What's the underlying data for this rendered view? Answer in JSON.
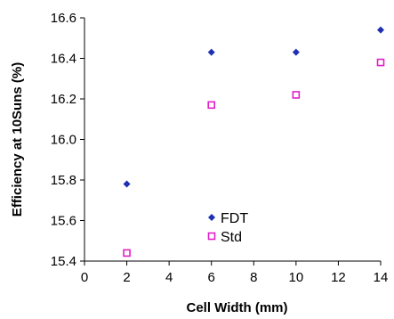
{
  "chart_data": {
    "type": "scatter",
    "title": "",
    "xlabel": "Cell Width (mm)",
    "ylabel": "Efficiency at 10Suns (%)",
    "xlim": [
      0,
      14
    ],
    "ylim": [
      15.4,
      16.6
    ],
    "x_ticks": [
      "0",
      "2",
      "4",
      "6",
      "8",
      "10",
      "12",
      "14"
    ],
    "y_ticks": [
      "15.4",
      "15.6",
      "15.8",
      "16.0",
      "16.2",
      "16.4",
      "16.6"
    ],
    "grid": false,
    "legend_position": "bottom-center",
    "series": [
      {
        "name": "FDT",
        "marker": "diamond",
        "color": "#1f2fb4",
        "x": [
          2,
          6,
          10,
          14
        ],
        "y": [
          15.78,
          16.43,
          16.43,
          16.54
        ]
      },
      {
        "name": "Std",
        "marker": "open-square",
        "color": "#e020c8",
        "x": [
          2,
          6,
          10,
          14
        ],
        "y": [
          15.44,
          16.17,
          16.22,
          16.38
        ]
      }
    ]
  }
}
